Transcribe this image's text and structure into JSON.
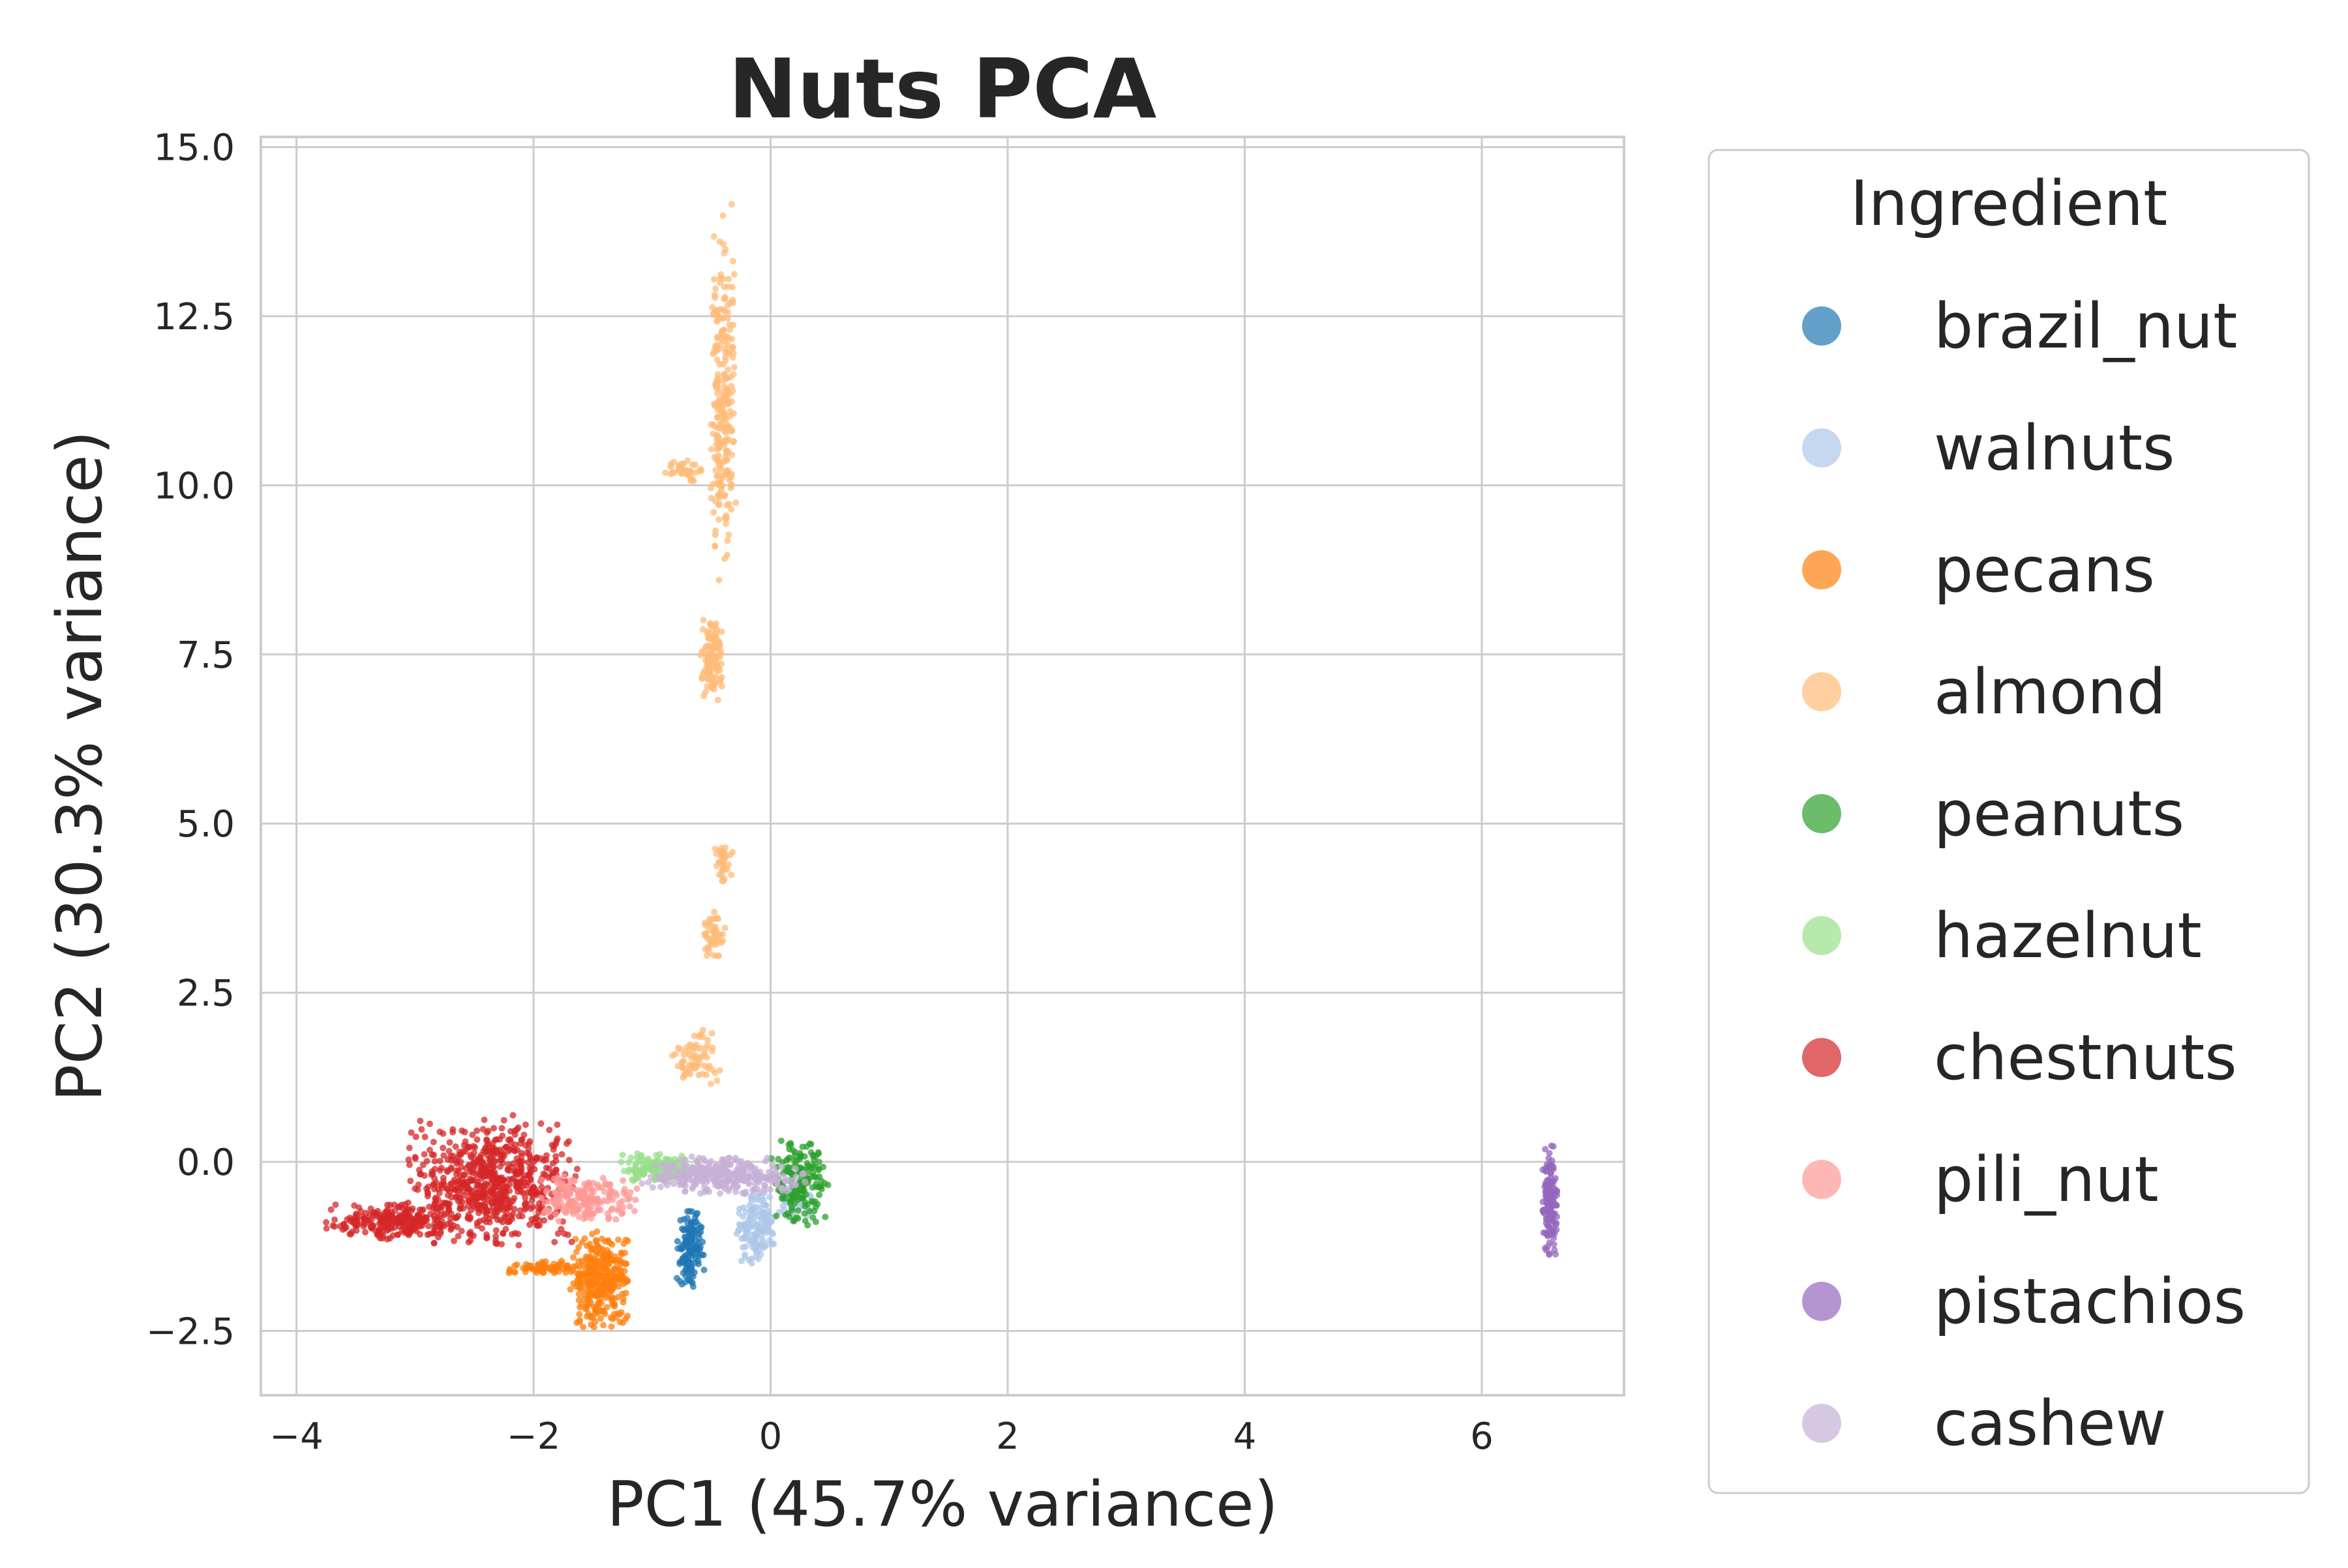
{
  "chart_data": {
    "type": "scatter",
    "title": "Nuts PCA",
    "xlabel": "PC1 (45.7% variance)",
    "ylabel": "PC2 (30.3% variance)",
    "xlim": [
      -4.3,
      7.2
    ],
    "ylim": [
      -3.45,
      15.15
    ],
    "xticks": [
      -4,
      -2,
      0,
      2,
      4,
      6
    ],
    "xtick_labels": [
      "−4",
      "−2",
      "0",
      "2",
      "4",
      "6"
    ],
    "yticks": [
      -2.5,
      0.0,
      2.5,
      5.0,
      7.5,
      10.0,
      12.5,
      15.0
    ],
    "ytick_labels": [
      "−2.5",
      "0.0",
      "2.5",
      "5.0",
      "7.5",
      "10.0",
      "12.5",
      "15.0"
    ],
    "grid": true,
    "legend": {
      "title": "Ingredient",
      "placement": "outside-right"
    },
    "series": [
      {
        "name": "brazil_nut",
        "color": "#1f77b4",
        "clusters": [
          {
            "n": 140,
            "x": [
              -0.8,
              -0.55
            ],
            "y": [
              -1.9,
              -0.6
            ]
          }
        ]
      },
      {
        "name": "walnuts",
        "color": "#aec7e8",
        "clusters": [
          {
            "n": 140,
            "x": [
              -0.3,
              0.05
            ],
            "y": [
              -1.6,
              -0.4
            ]
          },
          {
            "n": 60,
            "x": [
              0.05,
              0.35
            ],
            "y": [
              -0.9,
              -0.2
            ]
          }
        ]
      },
      {
        "name": "pecans",
        "color": "#ff7f0e",
        "clusters": [
          {
            "n": 320,
            "x": [
              -1.7,
              -1.15
            ],
            "y": [
              -2.5,
              -1.0
            ]
          },
          {
            "n": 70,
            "x": [
              -2.3,
              -1.5
            ],
            "y": [
              -1.7,
              -1.45
            ]
          }
        ]
      },
      {
        "name": "almond",
        "color": "#ffbb78",
        "clusters": [
          {
            "n": 260,
            "x": [
              -0.52,
              -0.28
            ],
            "y": [
              8.5,
              14.2
            ]
          },
          {
            "n": 40,
            "x": [
              -0.9,
              -0.55
            ],
            "y": [
              10.0,
              10.4
            ]
          },
          {
            "n": 110,
            "x": [
              -0.6,
              -0.4
            ],
            "y": [
              6.8,
              8.1
            ]
          },
          {
            "n": 40,
            "x": [
              -0.48,
              -0.3
            ],
            "y": [
              4.1,
              4.7
            ]
          },
          {
            "n": 50,
            "x": [
              -0.58,
              -0.38
            ],
            "y": [
              3.0,
              3.7
            ]
          },
          {
            "n": 70,
            "x": [
              -0.85,
              -0.4
            ],
            "y": [
              1.1,
              2.0
            ]
          }
        ]
      },
      {
        "name": "peanuts",
        "color": "#2ca02c",
        "clusters": [
          {
            "n": 160,
            "x": [
              0.0,
              0.5
            ],
            "y": [
              -1.0,
              0.4
            ]
          }
        ]
      },
      {
        "name": "hazelnut",
        "color": "#98df8a",
        "clusters": [
          {
            "n": 140,
            "x": [
              -1.3,
              -0.6
            ],
            "y": [
              -0.35,
              0.15
            ]
          }
        ]
      },
      {
        "name": "chestnuts",
        "color": "#d62728",
        "clusters": [
          {
            "n": 700,
            "x": [
              -3.1,
              -1.6
            ],
            "y": [
              -1.3,
              0.7
            ]
          },
          {
            "n": 250,
            "x": [
              -3.8,
              -2.6
            ],
            "y": [
              -1.15,
              -0.6
            ]
          }
        ]
      },
      {
        "name": "pili_nut",
        "color": "#ff9896",
        "clusters": [
          {
            "n": 180,
            "x": [
              -2.0,
              -1.1
            ],
            "y": [
              -0.9,
              -0.2
            ]
          }
        ]
      },
      {
        "name": "pistachios",
        "color": "#9467bd",
        "clusters": [
          {
            "n": 160,
            "x": [
              6.5,
              6.65
            ],
            "y": [
              -1.45,
              0.3
            ]
          }
        ]
      },
      {
        "name": "cashew",
        "color": "#c5b0d5",
        "clusters": [
          {
            "n": 320,
            "x": [
              -1.1,
              0.3
            ],
            "y": [
              -0.5,
              0.1
            ]
          }
        ]
      }
    ]
  }
}
